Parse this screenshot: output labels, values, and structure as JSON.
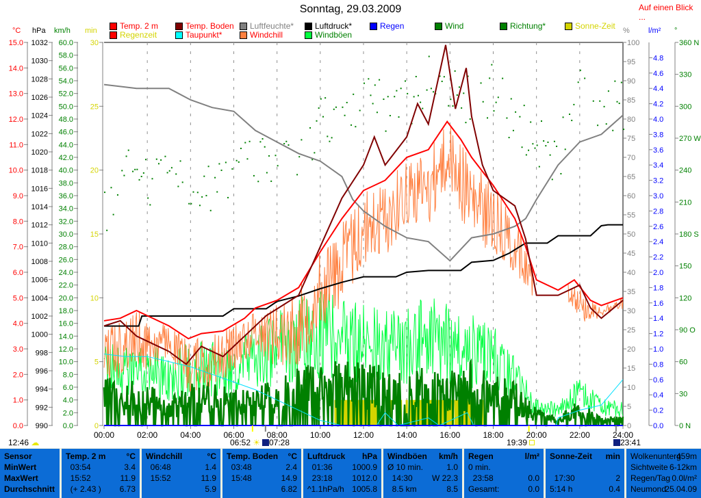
{
  "header": {
    "title": "Sonntag, 29.03.2009",
    "glance_link": "Auf einen Blick ..."
  },
  "legend": [
    {
      "label": "Temp. 2 m",
      "box": "#ff0000",
      "text": "#ff0000"
    },
    {
      "label": "Temp. Boden",
      "box": "#800000",
      "text": "#ff0000"
    },
    {
      "label": "Luftfeuchte*",
      "box": "#808080",
      "text": "#808080"
    },
    {
      "label": "Luftdruck*",
      "box": "#000000",
      "text": "#000000"
    },
    {
      "label": "Regen",
      "box": "#0000ff",
      "text": "#0000ff"
    },
    {
      "label": "Wind",
      "box": "#008000",
      "text": "#008000"
    },
    {
      "label": "Richtung*",
      "box": "#008000",
      "text": "#008000"
    },
    {
      "label": "Sonne-Zeit",
      "box": "#d4d400",
      "text": "#d4d400"
    },
    {
      "label": "Regenzeit",
      "box": "#ff0000",
      "text": "#d4d400"
    },
    {
      "label": "Taupunkt*",
      "box": "#00ffff",
      "text": "#ff0000"
    },
    {
      "label": "Windchill",
      "box": "#ff8040",
      "text": "#ff0000"
    },
    {
      "label": "Windböen",
      "box": "#00ff40",
      "text": "#008000"
    }
  ],
  "chart_data": {
    "type": "line",
    "title": "Sonntag, 29.03.2009",
    "x_axis": {
      "min": 0,
      "max": 24,
      "ticks": [
        "00:00",
        "02:00",
        "04:00",
        "06:00",
        "08:00",
        "10:00",
        "12:00",
        "14:00",
        "16:00",
        "18:00",
        "20:00",
        "22:00",
        "24:00"
      ]
    },
    "left_axes": [
      {
        "unit": "°C",
        "min": 0,
        "max": 15,
        "step": 1,
        "decimals": 1,
        "color": "#ff0000"
      },
      {
        "unit": "hPa",
        "min": 990,
        "max": 1032,
        "step": 2,
        "decimals": 0,
        "color": "#000000"
      },
      {
        "unit": "km/h",
        "min": 0,
        "max": 60,
        "step": 2,
        "decimals": 1,
        "color": "#008000"
      },
      {
        "unit": "min",
        "min": 0,
        "max": 30,
        "step": 5,
        "decimals": 0,
        "color": "#d4d400"
      }
    ],
    "right_axes": [
      {
        "unit": "%",
        "min": 0,
        "max": 100,
        "step": 5,
        "decimals": 0,
        "color": "#808080"
      },
      {
        "unit": "l/m²",
        "min": 0,
        "max": 4.8,
        "step": 0.2,
        "decimals": 1,
        "color": "#0000ff"
      },
      {
        "unit": "°",
        "min": 0,
        "max": 360,
        "step": 30,
        "decimals": 0,
        "color": "#008000",
        "compass": {
          "0": "N",
          "90": "O",
          "180": "S",
          "270": "W",
          "360": "N"
        }
      }
    ],
    "series": {
      "temp2m": {
        "name": "Temp. 2 m",
        "axis": "°C",
        "color": "#ff0000",
        "points": [
          [
            0,
            4.1
          ],
          [
            0.75,
            4.2
          ],
          [
            1.5,
            4.5
          ],
          [
            2,
            4.3
          ],
          [
            3,
            3.9
          ],
          [
            3.9,
            3.4
          ],
          [
            4.5,
            3.6
          ],
          [
            5.5,
            3.7
          ],
          [
            6.5,
            4.2
          ],
          [
            7,
            4.6
          ],
          [
            8,
            4.9
          ],
          [
            9,
            5.4
          ],
          [
            10,
            6.8
          ],
          [
            11,
            8.1
          ],
          [
            12,
            9.2
          ],
          [
            13,
            9.6
          ],
          [
            14,
            10.5
          ],
          [
            15,
            10.8
          ],
          [
            15.87,
            11.9
          ],
          [
            16.5,
            11.2
          ],
          [
            17,
            10.5
          ],
          [
            18,
            9.4
          ],
          [
            19,
            8.1
          ],
          [
            19.5,
            7.0
          ],
          [
            20,
            5.7
          ],
          [
            21,
            5.3
          ],
          [
            21.75,
            5.7
          ],
          [
            22.5,
            4.9
          ],
          [
            23,
            4.7
          ],
          [
            24,
            5.0
          ]
        ]
      },
      "tempBoden": {
        "name": "Temp. Boden",
        "axis": "°C",
        "color": "#800000",
        "points": [
          [
            0,
            3.9
          ],
          [
            0.75,
            4.1
          ],
          [
            1.5,
            3.5
          ],
          [
            2,
            3.3
          ],
          [
            3,
            2.9
          ],
          [
            3.8,
            2.4
          ],
          [
            4.5,
            3.1
          ],
          [
            5.5,
            2.7
          ],
          [
            6.5,
            3.5
          ],
          [
            7.5,
            4.3
          ],
          [
            9,
            5.1
          ],
          [
            10,
            7.0
          ],
          [
            11,
            8.9
          ],
          [
            12,
            10.2
          ],
          [
            12.5,
            11.3
          ],
          [
            13,
            10.2
          ],
          [
            14,
            11.3
          ],
          [
            14.5,
            12.6
          ],
          [
            15,
            11.8
          ],
          [
            15.8,
            14.9
          ],
          [
            16.25,
            12.4
          ],
          [
            16.75,
            14.0
          ],
          [
            17,
            12.1
          ],
          [
            17.5,
            10.2
          ],
          [
            18,
            9.2
          ],
          [
            19,
            8.6
          ],
          [
            19.5,
            7.3
          ],
          [
            20,
            5.1
          ],
          [
            21,
            5.1
          ],
          [
            22,
            5.5
          ],
          [
            22.5,
            4.6
          ],
          [
            23,
            4.2
          ],
          [
            24,
            4.9
          ]
        ]
      },
      "luftfeuchte": {
        "name": "Luftfeuchte*",
        "axis": "%",
        "color": "#808080",
        "points": [
          [
            0,
            89
          ],
          [
            1.5,
            88
          ],
          [
            3,
            88
          ],
          [
            4,
            85
          ],
          [
            5,
            83
          ],
          [
            6,
            82
          ],
          [
            7,
            77
          ],
          [
            8,
            74
          ],
          [
            9,
            71
          ],
          [
            10,
            69
          ],
          [
            11,
            65
          ],
          [
            11.5,
            59
          ],
          [
            12,
            56
          ],
          [
            13,
            52
          ],
          [
            14,
            49
          ],
          [
            15,
            48
          ],
          [
            16,
            43
          ],
          [
            17,
            49
          ],
          [
            18,
            50
          ],
          [
            19,
            52
          ],
          [
            19.5,
            54
          ],
          [
            20,
            59
          ],
          [
            21,
            68
          ],
          [
            22,
            74
          ],
          [
            23,
            76
          ],
          [
            24,
            81
          ]
        ]
      },
      "luftdruck": {
        "name": "Luftdruck*",
        "axis": "hPa",
        "color": "#000000",
        "points": [
          [
            0,
            1000.9
          ],
          [
            1.6,
            1000.9
          ],
          [
            1.75,
            1002
          ],
          [
            5.5,
            1002
          ],
          [
            6,
            1002.8
          ],
          [
            7.5,
            1002.8
          ],
          [
            8,
            1003.6
          ],
          [
            9,
            1004.2
          ],
          [
            10,
            1005
          ],
          [
            11,
            1005.7
          ],
          [
            12,
            1006.3
          ],
          [
            13.5,
            1006.3
          ],
          [
            14,
            1006.8
          ],
          [
            15,
            1007
          ],
          [
            16.5,
            1007
          ],
          [
            17,
            1007.9
          ],
          [
            18,
            1008.1
          ],
          [
            18.75,
            1008.9
          ],
          [
            19.5,
            1010
          ],
          [
            20.5,
            1010
          ],
          [
            21,
            1010.8
          ],
          [
            22.5,
            1010.8
          ],
          [
            23,
            1011.9
          ],
          [
            23.3,
            1012
          ],
          [
            24,
            1012
          ]
        ]
      },
      "taupunkt": {
        "name": "Taupunkt*",
        "axis": "°C",
        "color": "#00e0ff",
        "points": [
          [
            0,
            2.8
          ],
          [
            1,
            2.7
          ],
          [
            2,
            2.7
          ],
          [
            3,
            2.5
          ],
          [
            4,
            2.3
          ],
          [
            5,
            2.0
          ],
          [
            6,
            1.7
          ],
          [
            7,
            1.4
          ],
          [
            8,
            1.0
          ],
          [
            9,
            0.6
          ],
          [
            10,
            0.2
          ],
          [
            11,
            0
          ],
          [
            12.6,
            0
          ],
          [
            13,
            0.5
          ],
          [
            13.6,
            0
          ],
          [
            15,
            0.3
          ],
          [
            15.5,
            0
          ],
          [
            16.8,
            0.5
          ],
          [
            17.1,
            0
          ],
          [
            20.9,
            0
          ],
          [
            21,
            0.3
          ],
          [
            22,
            0.6
          ],
          [
            23,
            0.8
          ],
          [
            24,
            1.8
          ]
        ]
      },
      "wind": {
        "name": "Wind",
        "axis": "km/h",
        "color": "#008000",
        "hourly": [
          6,
          5,
          5,
          3,
          5,
          5,
          4,
          4,
          6,
          7,
          7,
          8,
          7,
          7,
          6,
          7,
          6,
          8,
          6,
          5,
          2,
          1,
          3,
          1,
          1
        ]
      },
      "windboeen": {
        "name": "Windböen",
        "axis": "km/h",
        "color": "#00ff40",
        "hourly": [
          10,
          9,
          10,
          8,
          10,
          10,
          9,
          12,
          14,
          15,
          16,
          15,
          15,
          14,
          14,
          15,
          14,
          13,
          12,
          8,
          3,
          3,
          6,
          3,
          3
        ]
      },
      "windchill_offset": {
        "name": "Windchill",
        "axis": "°C",
        "color": "#ff8040",
        "max_drop": 3.5
      },
      "richtung": {
        "name": "Richtung*",
        "axis": "°",
        "color": "#008000",
        "hourly": [
          195,
          239,
          225,
          240,
          225,
          220,
          235,
          249,
          255,
          258,
          284,
          297,
          310,
          300,
          305,
          323,
          310,
          305,
          316,
          285,
          270,
          250,
          332,
          300,
          300
        ]
      },
      "regen": {
        "name": "Regen",
        "axis": "l/m²",
        "color": "#0000ff",
        "total": 0.0
      },
      "sonne": {
        "name": "Sonne-Zeit",
        "axis": "min",
        "color": "#d4d400",
        "value": 2,
        "periods": [
          [
            10.65,
            12.65
          ],
          [
            13.25,
            13.35
          ],
          [
            13.65,
            13.78
          ],
          [
            13.95,
            14.05
          ],
          [
            14.1,
            16.15
          ],
          [
            16.2,
            17.1
          ],
          [
            17.45,
            17.55
          ]
        ]
      }
    }
  },
  "astro": {
    "cloud_time": "12:46",
    "sunrise": "06:52",
    "moonrise": "07:28",
    "sunset": "19:39",
    "moonset": "23:41"
  },
  "table": [
    {
      "rows": [
        [
          "Sensor",
          ""
        ],
        [
          "MinWert",
          ""
        ],
        [
          "MaxWert",
          ""
        ],
        [
          "Durchschnitt",
          ""
        ]
      ],
      "bold": true
    },
    {
      "rows": [
        [
          "Temp. 2 m",
          "°C"
        ],
        [
          "  03:54",
          "3.4"
        ],
        [
          "  15:52",
          "11.9"
        ],
        [
          "  (+ 2.43 )",
          "6.73"
        ]
      ]
    },
    {
      "rows": [
        [
          "Windchill",
          "°C"
        ],
        [
          "  06:48",
          "1.4"
        ],
        [
          "  15:52",
          "11.9"
        ],
        [
          "",
          "5.9"
        ]
      ]
    },
    {
      "rows": [
        [
          "Temp. Boden",
          "°C"
        ],
        [
          "  03:48",
          "2.4"
        ],
        [
          "  15:48",
          "14.9"
        ],
        [
          "",
          "6.82"
        ]
      ]
    },
    {
      "rows": [
        [
          "Luftdruck",
          "hPa"
        ],
        [
          "  01:36",
          "1000.9"
        ],
        [
          "  23:18",
          "1012.0"
        ],
        [
          "^1.1hPa/h",
          "1005.8"
        ]
      ]
    },
    {
      "rows": [
        [
          "Windböen",
          "km/h"
        ],
        [
          "Ø 10 min.",
          "1.0"
        ],
        [
          "  14:30",
          "W 22.3"
        ],
        [
          "  8.5 km",
          "8.5"
        ]
      ]
    },
    {
      "rows": [
        [
          "Regen",
          "l/m²"
        ],
        [
          "0 min.",
          ""
        ],
        [
          "  23:58",
          "0.0"
        ],
        [
          "Gesamt:",
          "0.0"
        ]
      ]
    },
    {
      "rows": [
        [
          "Sonne-Zeit",
          "min"
        ],
        [
          "",
          ""
        ],
        [
          "  17:30",
          "2"
        ],
        [
          "5:14 h",
          "0.4"
        ]
      ]
    },
    {
      "rows": [
        [
          "Wolkenunterg",
          "459m"
        ],
        [
          "Sichtweite",
          "6-12km"
        ],
        [
          "Regen/Tag",
          "0.0l/m²"
        ],
        [
          "Neumond",
          "25.04.09"
        ]
      ],
      "plain": true
    }
  ]
}
